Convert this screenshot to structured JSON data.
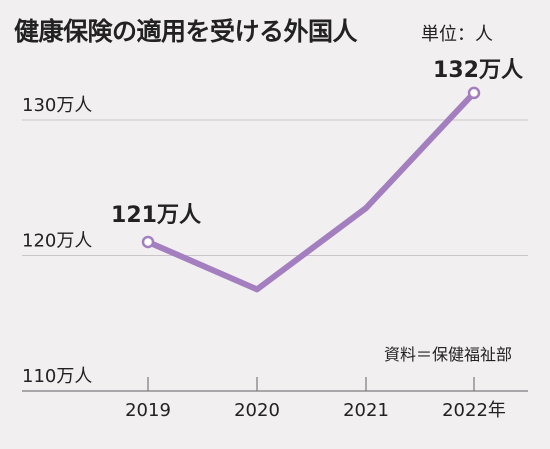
{
  "header": {
    "title": "健康保険の適用を受ける外国人",
    "unit": "単位：人"
  },
  "source": "資料＝保健福祉部",
  "colors": {
    "background": "#f1eff0",
    "line": "#a47fc0",
    "grid": "#c9c5c8",
    "text": "#222222"
  },
  "chart_data": {
    "type": "line",
    "title": "健康保険の適用を受ける外国人",
    "x": [
      "2019",
      "2020",
      "2021",
      "2022"
    ],
    "x_tick_labels": [
      "2019",
      "2020",
      "2021",
      "2022年"
    ],
    "series": [
      {
        "values": [
          121,
          117.5,
          123.5,
          132
        ]
      }
    ],
    "ylim": [
      110,
      130
    ],
    "y_ticks": [
      110,
      120,
      130
    ],
    "y_tick_labels": [
      "110万人",
      "120万人",
      "130万人"
    ],
    "grid": true,
    "annotations": [
      {
        "x": "2019",
        "y": 121,
        "label": "121万人"
      },
      {
        "x": "2022",
        "y": 132,
        "label": "132万人"
      }
    ]
  }
}
